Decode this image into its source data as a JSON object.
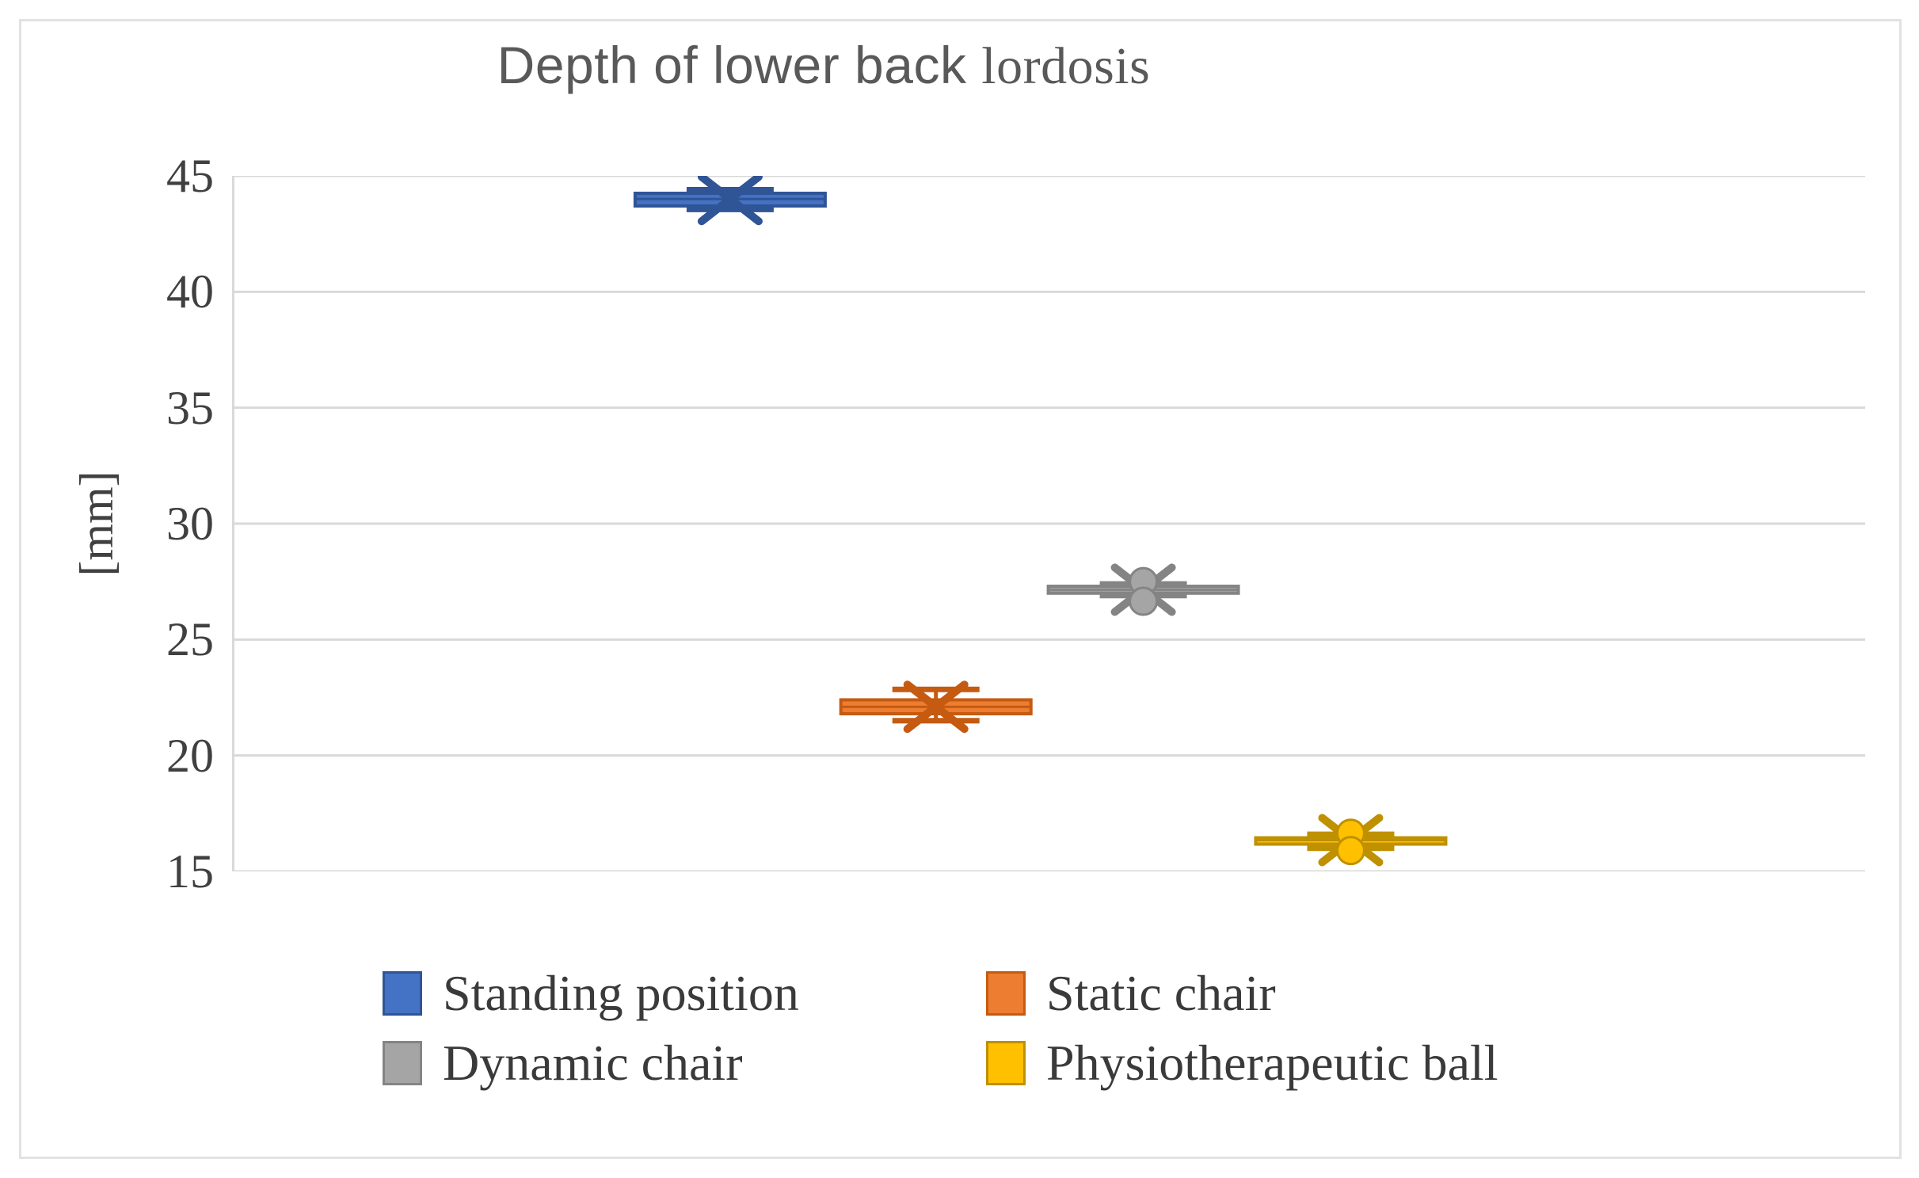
{
  "figure": {
    "border_color": "#e2e2e2",
    "background": "#ffffff"
  },
  "title": {
    "text_main": "Depth of lower back ",
    "text_accent": "lordosis",
    "full_text": "Depth of lower back lordosis",
    "color": "#595959"
  },
  "y_axis": {
    "label": "[mm]",
    "min": 15,
    "max": 45,
    "tick_step": 5,
    "tick_color": "#404040",
    "gridline_color": "#d9d9d9",
    "axisline_color": "#d9d9d9"
  },
  "chart_data": {
    "type": "boxplot",
    "title": "Depth of lower back lordosis",
    "ylabel": "[mm]",
    "ylim": [
      15,
      45
    ],
    "yticks": [
      45,
      40,
      35,
      30,
      25,
      20,
      15
    ],
    "grid": true,
    "legend_position": "bottom",
    "series": [
      {
        "name": "Standing position",
        "color": "#4472C4",
        "border": "#2F5597",
        "x_frac": 0.305,
        "median": 44.0,
        "mean": 44.0,
        "q1": 43.7,
        "q3": 44.25,
        "whisker_low": 43.55,
        "whisker_high": 44.4,
        "mean_marker": "x",
        "outliers": []
      },
      {
        "name": "Static chair",
        "color": "#ED7D31",
        "border": "#C55A11",
        "x_frac": 0.431,
        "median": 22.1,
        "mean": 22.1,
        "q1": 21.8,
        "q3": 22.4,
        "whisker_low": 21.5,
        "whisker_high": 22.85,
        "mean_marker": "x",
        "outliers": []
      },
      {
        "name": "Dynamic chair",
        "color": "#A5A5A5",
        "border": "#848484",
        "x_frac": 0.558,
        "median": 27.15,
        "mean": 27.15,
        "q1": 27.0,
        "q3": 27.3,
        "whisker_low": 26.9,
        "whisker_high": 27.4,
        "mean_marker": "x",
        "outliers": [
          27.5,
          26.65
        ]
      },
      {
        "name": "Physiotherapeutic ball",
        "color": "#FFC000",
        "border": "#BF9000",
        "x_frac": 0.685,
        "median": 16.35,
        "mean": 16.35,
        "q1": 16.25,
        "q3": 16.45,
        "whisker_low": 16.0,
        "whisker_high": 16.6,
        "mean_marker": "x",
        "outliers": [
          16.65,
          15.9
        ]
      }
    ]
  },
  "legend": {
    "items": [
      {
        "label": "Standing position",
        "color": "#4472C4",
        "border": "#2F5597"
      },
      {
        "label": "Static chair",
        "color": "#ED7D31",
        "border": "#C55A11"
      },
      {
        "label": "Dynamic chair",
        "color": "#A5A5A5",
        "border": "#848484"
      },
      {
        "label": "Physiotherapeutic ball",
        "color": "#FFC000",
        "border": "#BF9000"
      }
    ]
  }
}
